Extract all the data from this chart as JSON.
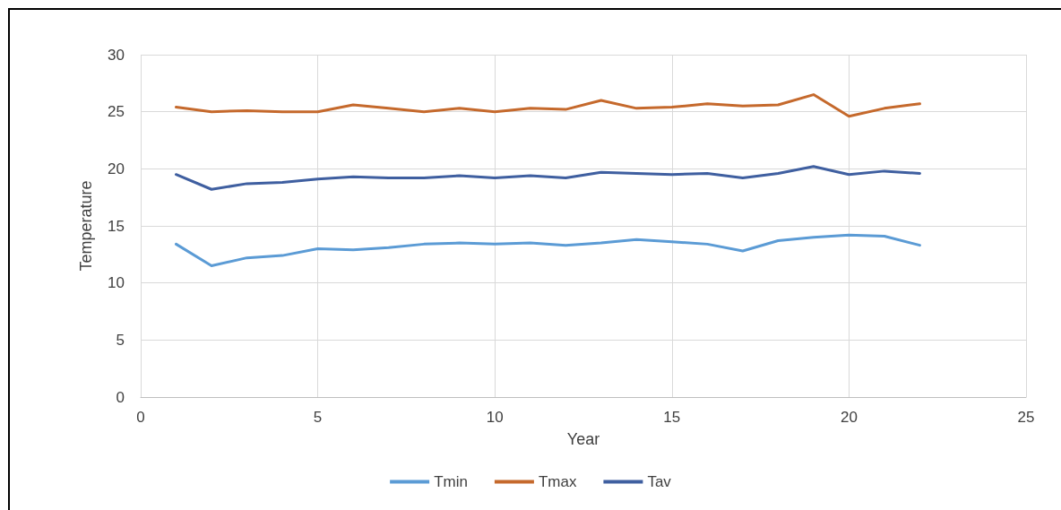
{
  "chart_data": {
    "type": "line",
    "xlabel": "Year",
    "ylabel": "Temperature",
    "x": [
      1,
      2,
      3,
      4,
      5,
      6,
      7,
      8,
      9,
      10,
      11,
      12,
      13,
      14,
      15,
      16,
      17,
      18,
      19,
      20,
      21,
      22
    ],
    "xlim": [
      0,
      25
    ],
    "xticks": [
      0,
      5,
      10,
      15,
      20,
      25
    ],
    "ylim": [
      0,
      30
    ],
    "yticks": [
      0,
      5,
      10,
      15,
      20,
      25,
      30
    ],
    "grid": true,
    "legend": "bottom",
    "marker": "none",
    "series": [
      {
        "name": "Tmin",
        "color": "#5b9bd5",
        "values": [
          13.4,
          11.5,
          12.2,
          12.4,
          13.0,
          12.9,
          13.1,
          13.4,
          13.5,
          13.4,
          13.5,
          13.3,
          13.5,
          13.8,
          13.6,
          13.4,
          12.8,
          13.7,
          14.0,
          14.2,
          14.1,
          13.3
        ]
      },
      {
        "name": "Tmax",
        "color": "#c5692c",
        "values": [
          25.4,
          25.0,
          25.1,
          25.0,
          25.0,
          25.6,
          25.3,
          25.0,
          25.3,
          25.0,
          25.3,
          25.2,
          26.0,
          25.3,
          25.4,
          25.7,
          25.5,
          25.6,
          26.5,
          24.6,
          25.3,
          25.7
        ]
      },
      {
        "name": "Tav",
        "color": "#3f5fa0",
        "values": [
          19.5,
          18.2,
          18.7,
          18.8,
          19.1,
          19.3,
          19.2,
          19.2,
          19.4,
          19.2,
          19.4,
          19.2,
          19.7,
          19.6,
          19.5,
          19.6,
          19.2,
          19.6,
          20.2,
          19.5,
          19.8,
          19.6
        ]
      }
    ]
  }
}
